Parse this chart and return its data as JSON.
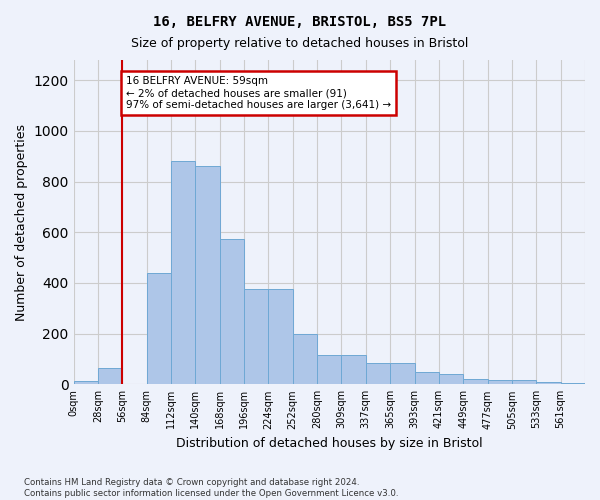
{
  "title1": "16, BELFRY AVENUE, BRISTOL, BS5 7PL",
  "title2": "Size of property relative to detached houses in Bristol",
  "xlabel": "Distribution of detached houses by size in Bristol",
  "ylabel": "Number of detached properties",
  "bin_labels": [
    "0sqm",
    "28sqm",
    "56sqm",
    "84sqm",
    "112sqm",
    "140sqm",
    "168sqm",
    "196sqm",
    "224sqm",
    "252sqm",
    "280sqm",
    "309sqm",
    "337sqm",
    "365sqm",
    "393sqm",
    "421sqm",
    "449sqm",
    "477sqm",
    "505sqm",
    "533sqm",
    "561sqm"
  ],
  "bar_heights": [
    13,
    65,
    0,
    440,
    880,
    860,
    575,
    375,
    375,
    200,
    115,
    115,
    85,
    85,
    50,
    40,
    22,
    18,
    18,
    8,
    5
  ],
  "bar_color": "#aec6e8",
  "bar_edge_color": "#6fa8d4",
  "grid_color": "#cccccc",
  "annotation_text": "16 BELFRY AVENUE: 59sqm\n← 2% of detached houses are smaller (91)\n97% of semi-detached houses are larger (3,641) →",
  "vline_x": 2.0,
  "annotation_box_color": "#ffffff",
  "annotation_box_edge": "#cc0000",
  "ylim": [
    0,
    1280
  ],
  "yticks": [
    0,
    200,
    400,
    600,
    800,
    1000,
    1200
  ],
  "footer": "Contains HM Land Registry data © Crown copyright and database right 2024.\nContains public sector information licensed under the Open Government Licence v3.0.",
  "bg_color": "#eef2fb"
}
